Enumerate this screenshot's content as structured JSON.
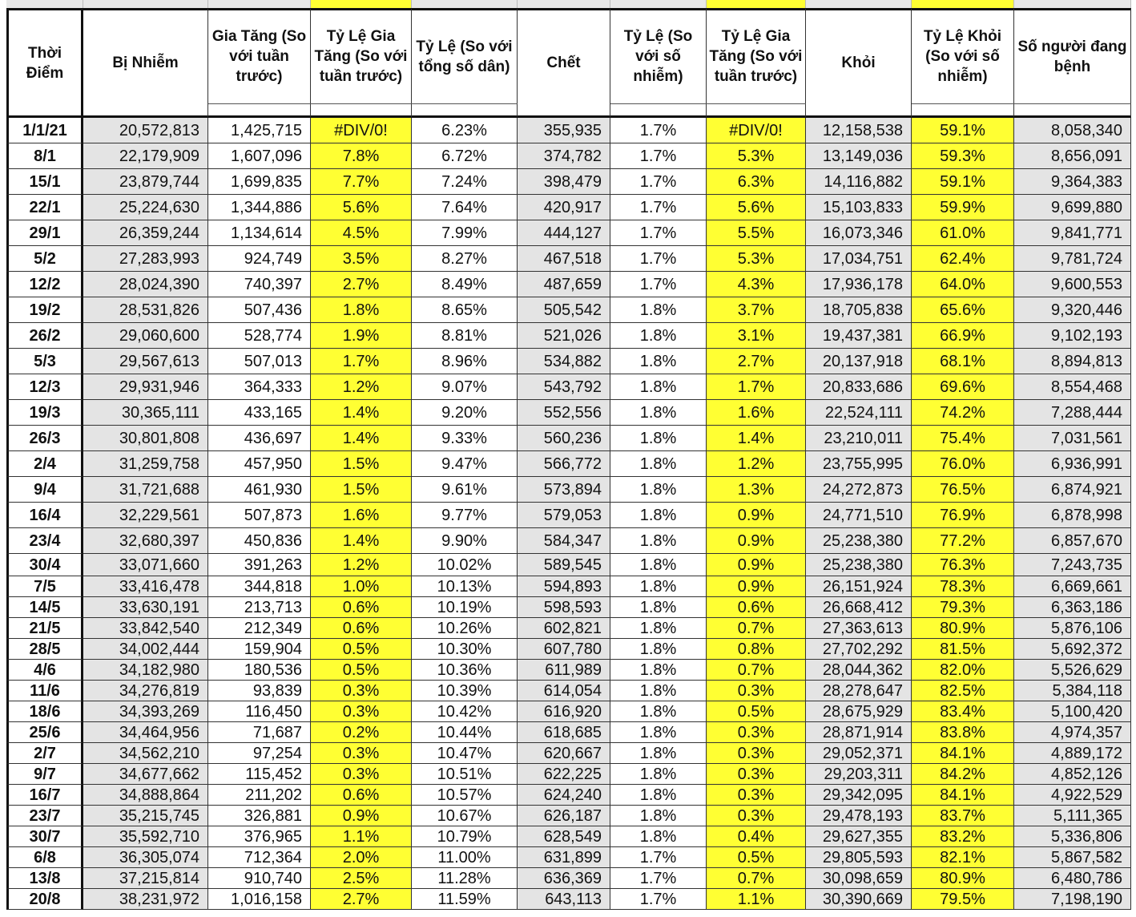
{
  "table": {
    "headers": [
      "Thời Điểm",
      "Bị Nhiễm",
      "Gia Tăng (So với tuần trước)",
      "Tỷ Lệ Gia Tăng (So với tuần trước)",
      "Tỷ Lệ (So với tổng số dân)",
      "Chết",
      "Tỷ Lệ (So với số nhiễm)",
      "Tỷ Lệ Gia Tăng (So với tuần trước)",
      "Khỏi",
      "Tỷ Lệ Khỏi (So với số nhiễm)",
      "Số người đang bệnh"
    ],
    "rows": [
      [
        "1/1/21",
        "20,572,813",
        "1,425,715",
        "#DIV/0!",
        "6.23%",
        "355,935",
        "1.7%",
        "#DIV/0!",
        "12,158,538",
        "59.1%",
        "8,058,340"
      ],
      [
        "8/1",
        "22,179,909",
        "1,607,096",
        "7.8%",
        "6.72%",
        "374,782",
        "1.7%",
        "5.3%",
        "13,149,036",
        "59.3%",
        "8,656,091"
      ],
      [
        "15/1",
        "23,879,744",
        "1,699,835",
        "7.7%",
        "7.24%",
        "398,479",
        "1.7%",
        "6.3%",
        "14,116,882",
        "59.1%",
        "9,364,383"
      ],
      [
        "22/1",
        "25,224,630",
        "1,344,886",
        "5.6%",
        "7.64%",
        "420,917",
        "1.7%",
        "5.6%",
        "15,103,833",
        "59.9%",
        "9,699,880"
      ],
      [
        "29/1",
        "26,359,244",
        "1,134,614",
        "4.5%",
        "7.99%",
        "444,127",
        "1.7%",
        "5.5%",
        "16,073,346",
        "61.0%",
        "9,841,771"
      ],
      [
        "5/2",
        "27,283,993",
        "924,749",
        "3.5%",
        "8.27%",
        "467,518",
        "1.7%",
        "5.3%",
        "17,034,751",
        "62.4%",
        "9,781,724"
      ],
      [
        "12/2",
        "28,024,390",
        "740,397",
        "2.7%",
        "8.49%",
        "487,659",
        "1.7%",
        "4.3%",
        "17,936,178",
        "64.0%",
        "9,600,553"
      ],
      [
        "19/2",
        "28,531,826",
        "507,436",
        "1.8%",
        "8.65%",
        "505,542",
        "1.8%",
        "3.7%",
        "18,705,838",
        "65.6%",
        "9,320,446"
      ],
      [
        "26/2",
        "29,060,600",
        "528,774",
        "1.9%",
        "8.81%",
        "521,026",
        "1.8%",
        "3.1%",
        "19,437,381",
        "66.9%",
        "9,102,193"
      ],
      [
        "5/3",
        "29,567,613",
        "507,013",
        "1.7%",
        "8.96%",
        "534,882",
        "1.8%",
        "2.7%",
        "20,137,918",
        "68.1%",
        "8,894,813"
      ],
      [
        "12/3",
        "29,931,946",
        "364,333",
        "1.2%",
        "9.07%",
        "543,792",
        "1.8%",
        "1.7%",
        "20,833,686",
        "69.6%",
        "8,554,468"
      ],
      [
        "19/3",
        "30,365,111",
        "433,165",
        "1.4%",
        "9.20%",
        "552,556",
        "1.8%",
        "1.6%",
        "22,524,111",
        "74.2%",
        "7,288,444"
      ],
      [
        "26/3",
        "30,801,808",
        "436,697",
        "1.4%",
        "9.33%",
        "560,236",
        "1.8%",
        "1.4%",
        "23,210,011",
        "75.4%",
        "7,031,561"
      ],
      [
        "2/4",
        "31,259,758",
        "457,950",
        "1.5%",
        "9.47%",
        "566,772",
        "1.8%",
        "1.2%",
        "23,755,995",
        "76.0%",
        "6,936,991"
      ],
      [
        "9/4",
        "31,721,688",
        "461,930",
        "1.5%",
        "9.61%",
        "573,894",
        "1.8%",
        "1.3%",
        "24,272,873",
        "76.5%",
        "6,874,921"
      ],
      [
        "16/4",
        "32,229,561",
        "507,873",
        "1.6%",
        "9.77%",
        "579,053",
        "1.8%",
        "0.9%",
        "24,771,510",
        "76.9%",
        "6,878,998"
      ],
      [
        "23/4",
        "32,680,397",
        "450,836",
        "1.4%",
        "9.90%",
        "584,347",
        "1.8%",
        "0.9%",
        "25,238,380",
        "77.2%",
        "6,857,670"
      ],
      [
        "30/4",
        "33,071,660",
        "391,263",
        "1.2%",
        "10.02%",
        "589,545",
        "1.8%",
        "0.9%",
        "25,238,380",
        "76.3%",
        "7,243,735"
      ],
      [
        "7/5",
        "33,416,478",
        "344,818",
        "1.0%",
        "10.13%",
        "594,893",
        "1.8%",
        "0.9%",
        "26,151,924",
        "78.3%",
        "6,669,661"
      ],
      [
        "14/5",
        "33,630,191",
        "213,713",
        "0.6%",
        "10.19%",
        "598,593",
        "1.8%",
        "0.6%",
        "26,668,412",
        "79.3%",
        "6,363,186"
      ],
      [
        "21/5",
        "33,842,540",
        "212,349",
        "0.6%",
        "10.26%",
        "602,821",
        "1.8%",
        "0.7%",
        "27,363,613",
        "80.9%",
        "5,876,106"
      ],
      [
        "28/5",
        "34,002,444",
        "159,904",
        "0.5%",
        "10.30%",
        "607,780",
        "1.8%",
        "0.8%",
        "27,702,292",
        "81.5%",
        "5,692,372"
      ],
      [
        "4/6",
        "34,182,980",
        "180,536",
        "0.5%",
        "10.36%",
        "611,989",
        "1.8%",
        "0.7%",
        "28,044,362",
        "82.0%",
        "5,526,629"
      ],
      [
        "11/6",
        "34,276,819",
        "93,839",
        "0.3%",
        "10.39%",
        "614,054",
        "1.8%",
        "0.3%",
        "28,278,647",
        "82.5%",
        "5,384,118"
      ],
      [
        "18/6",
        "34,393,269",
        "116,450",
        "0.3%",
        "10.42%",
        "616,920",
        "1.8%",
        "0.5%",
        "28,675,929",
        "83.4%",
        "5,100,420"
      ],
      [
        "25/6",
        "34,464,956",
        "71,687",
        "0.2%",
        "10.44%",
        "618,685",
        "1.8%",
        "0.3%",
        "28,871,914",
        "83.8%",
        "4,974,357"
      ],
      [
        "2/7",
        "34,562,210",
        "97,254",
        "0.3%",
        "10.47%",
        "620,667",
        "1.8%",
        "0.3%",
        "29,052,371",
        "84.1%",
        "4,889,172"
      ],
      [
        "9/7",
        "34,677,662",
        "115,452",
        "0.3%",
        "10.51%",
        "622,225",
        "1.8%",
        "0.3%",
        "29,203,311",
        "84.2%",
        "4,852,126"
      ],
      [
        "16/7",
        "34,888,864",
        "211,202",
        "0.6%",
        "10.57%",
        "624,240",
        "1.8%",
        "0.3%",
        "29,342,095",
        "84.1%",
        "4,922,529"
      ],
      [
        "23/7",
        "35,215,745",
        "326,881",
        "0.9%",
        "10.67%",
        "626,187",
        "1.8%",
        "0.3%",
        "29,478,193",
        "83.7%",
        "5,111,365"
      ],
      [
        "30/7",
        "35,592,710",
        "376,965",
        "1.1%",
        "10.79%",
        "628,549",
        "1.8%",
        "0.4%",
        "29,627,355",
        "83.2%",
        "5,336,806"
      ],
      [
        "6/8",
        "36,305,074",
        "712,364",
        "2.0%",
        "11.00%",
        "631,899",
        "1.7%",
        "0.5%",
        "29,805,593",
        "82.1%",
        "5,867,582"
      ],
      [
        "13/8",
        "37,215,814",
        "910,740",
        "2.5%",
        "11.28%",
        "636,369",
        "1.7%",
        "0.7%",
        "30,098,659",
        "80.9%",
        "6,480,786"
      ],
      [
        "20/8",
        "38,231,972",
        "1,016,158",
        "2.7%",
        "11.59%",
        "643,113",
        "1.7%",
        "1.1%",
        "30,390,669",
        "79.5%",
        "7,198,190"
      ]
    ]
  }
}
